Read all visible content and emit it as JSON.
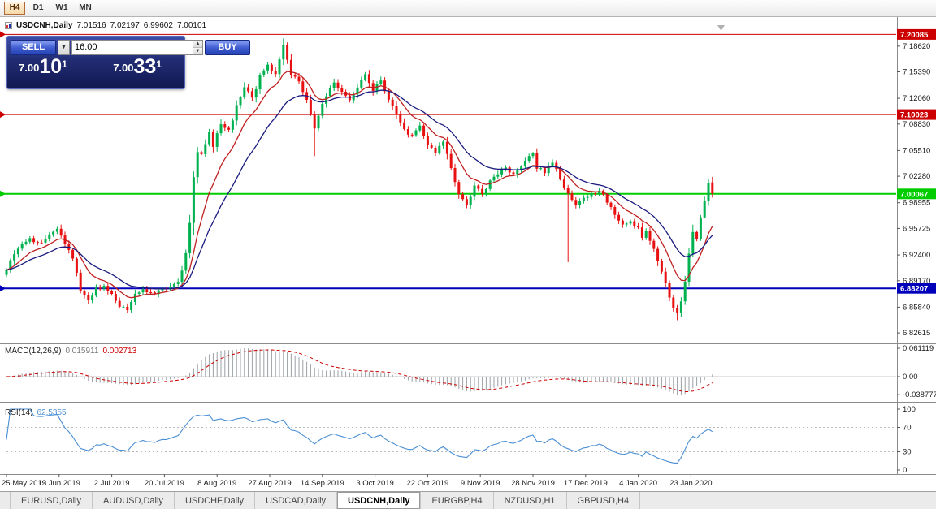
{
  "toolbar": {
    "timeframes": [
      {
        "label": "H4",
        "active": true
      },
      {
        "label": "D1",
        "active": false
      },
      {
        "label": "W1",
        "active": false
      },
      {
        "label": "MN",
        "active": false
      }
    ]
  },
  "chart_header": {
    "title": "USDCNH,Daily",
    "open": "7.01516",
    "high": "7.02197",
    "low": "6.99602",
    "close": "7.00101"
  },
  "trade_panel": {
    "sell_label": "SELL",
    "buy_label": "BUY",
    "volume_value": "16.00",
    "volume_dropdown_icon": "▼",
    "spin_up_icon": "▲",
    "spin_down_icon": "▼",
    "sell_price": {
      "main": "7.00",
      "big": "10",
      "sup": "1"
    },
    "buy_price": {
      "main": "7.00",
      "big": "33",
      "sup": "1"
    }
  },
  "tabs": {
    "items": [
      "EURUSD,Daily",
      "AUDUSD,Daily",
      "USDCHF,Daily",
      "USDCAD,Daily",
      "USDCNH,Daily",
      "EURGBP,H4",
      "NZDUSD,H1",
      "GBPUSD,H4"
    ],
    "active_index": 4
  },
  "chart_data": {
    "type": "candlestick",
    "symbol": "USDCNH",
    "timeframe": "Daily",
    "num_candles": 182,
    "last_candle_ohlc": [
      7.01516,
      7.02197,
      6.99602,
      7.00101
    ],
    "ylim": [
      6.813,
      7.2145
    ],
    "close_anchors": [
      [
        0,
        6.905
      ],
      [
        2,
        6.925
      ],
      [
        4,
        6.938
      ],
      [
        6,
        6.944
      ],
      [
        9,
        6.94
      ],
      [
        11,
        6.952
      ],
      [
        13,
        6.956
      ],
      [
        15,
        6.94
      ],
      [
        17,
        6.92
      ],
      [
        19,
        6.88
      ],
      [
        21,
        6.868
      ],
      [
        23,
        6.882
      ],
      [
        25,
        6.885
      ],
      [
        27,
        6.874
      ],
      [
        29,
        6.861
      ],
      [
        31,
        6.857
      ],
      [
        33,
        6.873
      ],
      [
        35,
        6.88
      ],
      [
        38,
        6.877
      ],
      [
        41,
        6.882
      ],
      [
        44,
        6.888
      ],
      [
        45,
        6.902
      ],
      [
        46,
        6.925
      ],
      [
        47,
        6.965
      ],
      [
        48,
        7.022
      ],
      [
        49,
        7.055
      ],
      [
        50,
        7.048
      ],
      [
        51,
        7.062
      ],
      [
        52,
        7.08
      ],
      [
        53,
        7.062
      ],
      [
        55,
        7.09
      ],
      [
        57,
        7.08
      ],
      [
        59,
        7.11
      ],
      [
        61,
        7.135
      ],
      [
        63,
        7.12
      ],
      [
        65,
        7.148
      ],
      [
        67,
        7.162
      ],
      [
        69,
        7.15
      ],
      [
        70,
        7.168
      ],
      [
        71,
        7.185
      ],
      [
        72,
        7.17
      ],
      [
        73,
        7.152
      ],
      [
        75,
        7.14
      ],
      [
        77,
        7.12
      ],
      [
        79,
        7.085
      ],
      [
        80,
        7.1
      ],
      [
        82,
        7.125
      ],
      [
        84,
        7.14
      ],
      [
        86,
        7.128
      ],
      [
        88,
        7.116
      ],
      [
        90,
        7.134
      ],
      [
        92,
        7.15
      ],
      [
        94,
        7.13
      ],
      [
        96,
        7.143
      ],
      [
        98,
        7.12
      ],
      [
        100,
        7.098
      ],
      [
        102,
        7.082
      ],
      [
        104,
        7.072
      ],
      [
        106,
        7.088
      ],
      [
        108,
        7.062
      ],
      [
        110,
        7.055
      ],
      [
        112,
        7.068
      ],
      [
        114,
        7.032
      ],
      [
        116,
        7.002
      ],
      [
        118,
        6.988
      ],
      [
        120,
        7.01
      ],
      [
        122,
        7.002
      ],
      [
        124,
        7.016
      ],
      [
        126,
        7.026
      ],
      [
        128,
        7.036
      ],
      [
        130,
        7.024
      ],
      [
        132,
        7.036
      ],
      [
        134,
        7.046
      ],
      [
        135,
        7.05
      ],
      [
        136,
        7.034
      ],
      [
        138,
        7.028
      ],
      [
        140,
        7.042
      ],
      [
        142,
        7.02
      ],
      [
        144,
        7.0
      ],
      [
        146,
        6.986
      ],
      [
        148,
        6.994
      ],
      [
        150,
        7.0
      ],
      [
        152,
        7.004
      ],
      [
        154,
        6.992
      ],
      [
        156,
        6.972
      ],
      [
        158,
        6.962
      ],
      [
        160,
        6.964
      ],
      [
        162,
        6.957
      ],
      [
        163,
        6.948
      ],
      [
        164,
        6.952
      ],
      [
        165,
        6.94
      ],
      [
        166,
        6.93
      ],
      [
        167,
        6.916
      ],
      [
        168,
        6.902
      ],
      [
        169,
        6.888
      ],
      [
        170,
        6.872
      ],
      [
        171,
        6.858
      ],
      [
        172,
        6.85
      ],
      [
        173,
        6.866
      ],
      [
        174,
        6.893
      ],
      [
        175,
        6.924
      ],
      [
        176,
        6.952
      ],
      [
        177,
        6.944
      ],
      [
        178,
        6.972
      ],
      [
        179,
        6.99
      ],
      [
        180,
        7.012
      ],
      [
        181,
        7.001
      ]
    ],
    "wick_overrides": {
      "71": {
        "high": 7.196
      },
      "79": {
        "low": 7.048
      },
      "144": {
        "low": 6.915
      },
      "172": {
        "low": 6.842
      }
    },
    "price_axis_ticks": [
      "7.18620",
      "7.15390",
      "7.12060",
      "7.08830",
      "7.05510",
      "7.02280",
      "6.98955",
      "6.95725",
      "6.92400",
      "6.89170",
      "6.85840",
      "6.82615"
    ],
    "x_labels": [
      "25 May 2019",
      "13 Jun 2019",
      "2 Jul 2019",
      "20 Jul 2019",
      "8 Aug 2019",
      "27 Aug 2019",
      "14 Sep 2019",
      "3 Oct 2019",
      "22 Oct 2019",
      "9 Nov 2019",
      "28 Nov 2019",
      "17 Dec 2019",
      "4 Jan 2020",
      "23 Jan 2020"
    ],
    "candles_per_xlabel": 13.5,
    "hlines": [
      {
        "value": 7.20085,
        "label": "7.20085",
        "color": "#cc0000",
        "width": 1
      },
      {
        "value": 7.10023,
        "label": "7.10023",
        "color": "#cc0000",
        "width": 1
      },
      {
        "value": 7.00067,
        "label": "7.00067",
        "color": "#00cc00",
        "width": 2
      },
      {
        "value": 6.88207,
        "label": "6.88207",
        "color": "#0000bb",
        "width": 2
      }
    ],
    "moving_averages": [
      {
        "period": 10,
        "color": "#c02020"
      },
      {
        "period": 21,
        "color": "#1a1a80"
      }
    ],
    "macd": {
      "label": "MACD(12,26,9)",
      "fast": 12,
      "slow": 26,
      "signal": 9,
      "value": "0.015911",
      "signal_value": "0.002713",
      "axis_labels": [
        "0.061119",
        "0.00",
        "-0.038777"
      ],
      "axis_values": [
        0.061119,
        0,
        -0.038777
      ],
      "hist_color": "#9aa0a6",
      "signal_color": "#cc0000"
    },
    "rsi": {
      "label": "RSI(14)",
      "period": 14,
      "value": "62.5355",
      "axis_labels": [
        "100",
        "70",
        "30",
        "0"
      ],
      "axis_values": [
        100,
        70,
        30,
        0
      ],
      "levels": [
        70,
        30
      ],
      "color": "#4a8fd4"
    },
    "colors": {
      "up": "#00b14f",
      "down": "#e81010",
      "bg": "#ffffff"
    }
  }
}
